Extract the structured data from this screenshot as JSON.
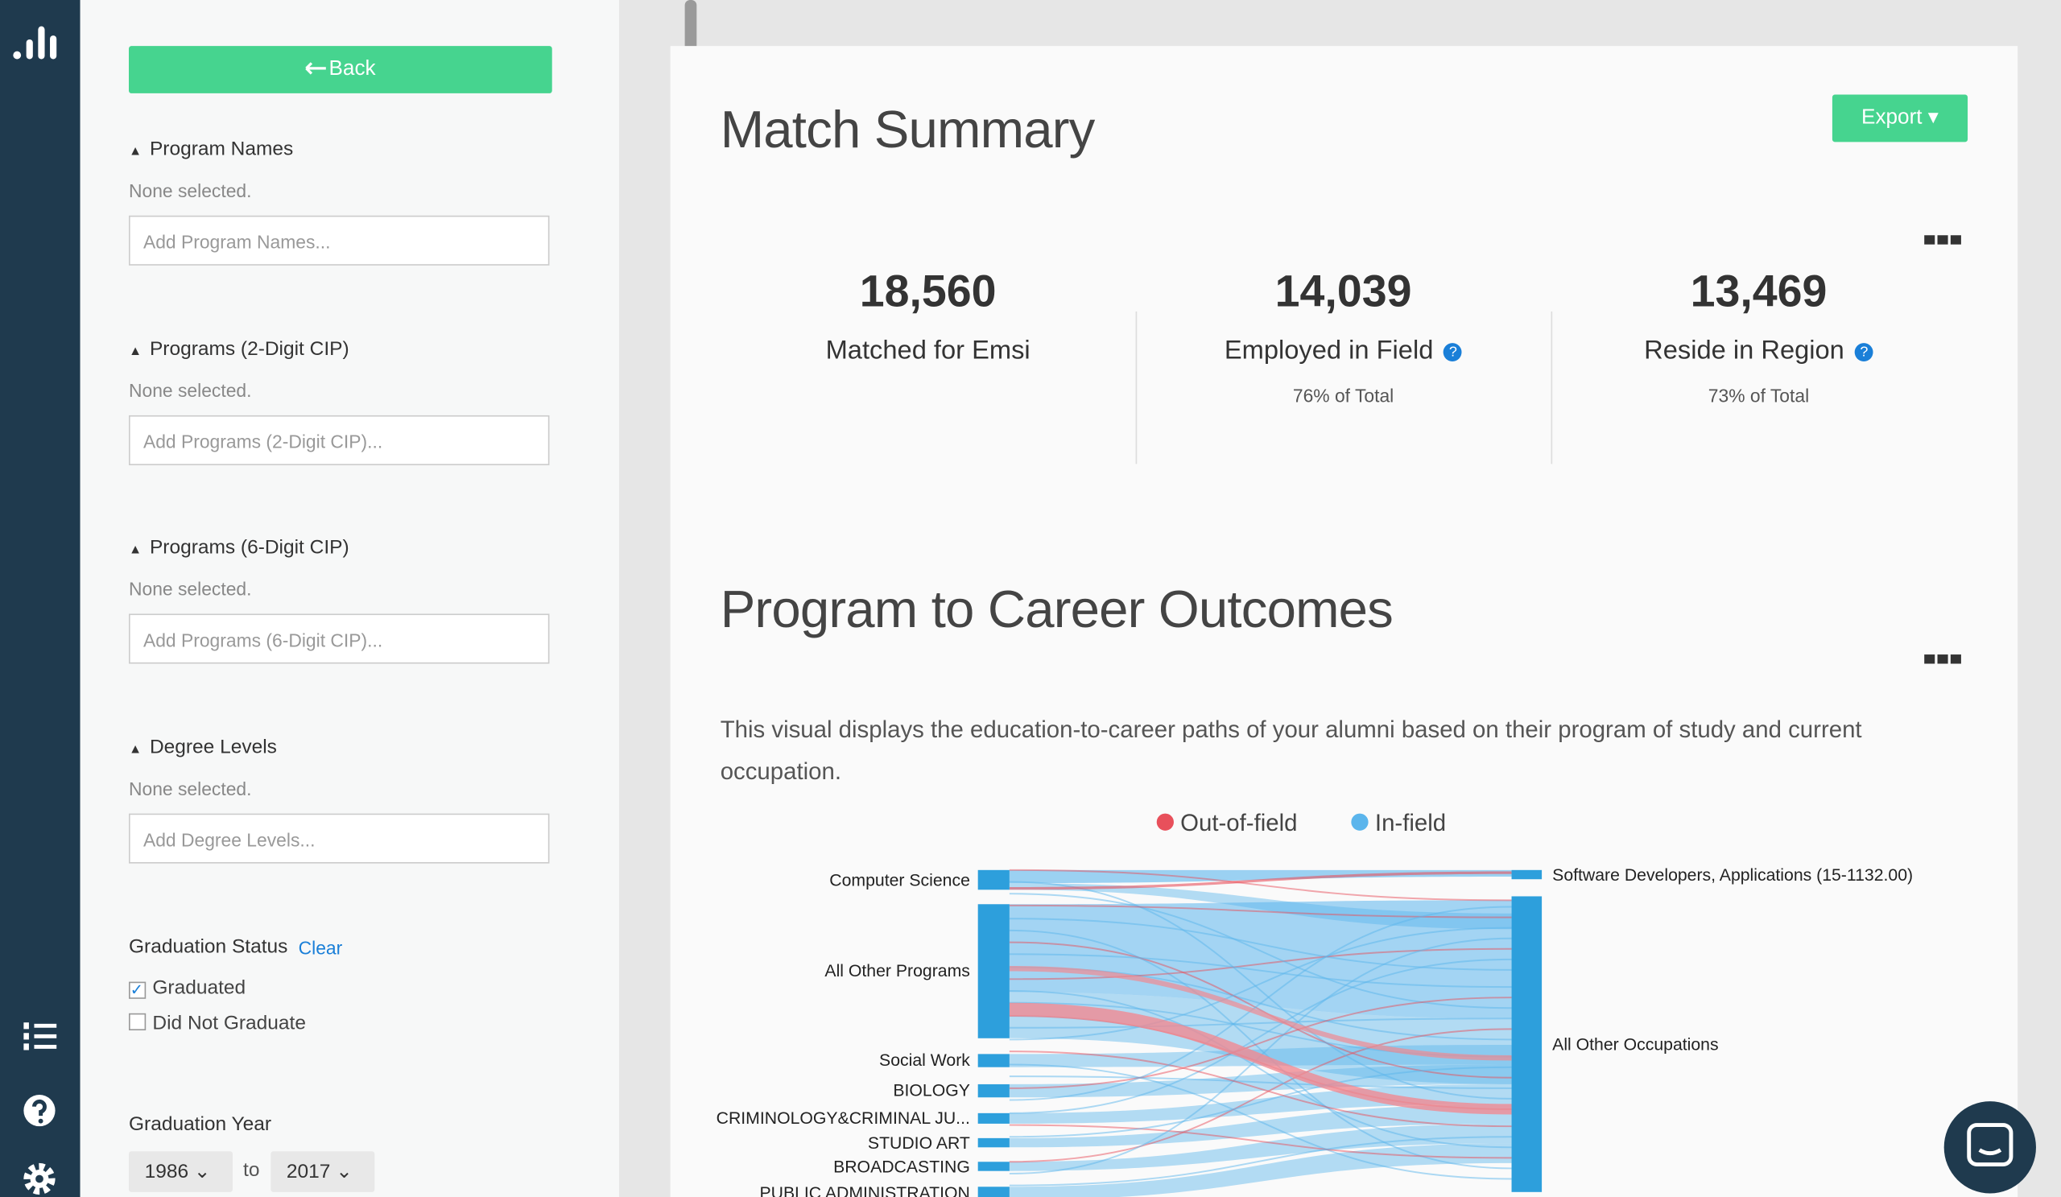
{
  "sidebar": {
    "back_button": "Back",
    "filters": [
      {
        "title": "Program Names",
        "status": "None selected.",
        "placeholder": "Add Program Names..."
      },
      {
        "title": "Programs (2-Digit CIP)",
        "status": "None selected.",
        "placeholder": "Add Programs (2-Digit CIP)..."
      },
      {
        "title": "Programs (6-Digit CIP)",
        "status": "None selected.",
        "placeholder": "Add Programs (6-Digit CIP)..."
      },
      {
        "title": "Degree Levels",
        "status": "None selected.",
        "placeholder": "Add Degree Levels..."
      }
    ],
    "graduation_status": {
      "title": "Graduation Status",
      "clear": "Clear",
      "options": [
        "Graduated",
        "Did Not Graduate"
      ]
    },
    "graduation_year": {
      "title": "Graduation Year",
      "from": "1986",
      "to_label": "to",
      "to": "2017"
    }
  },
  "main": {
    "match_summary": {
      "title": "Match Summary",
      "export": "Export",
      "stats": [
        {
          "value": "18,560",
          "label": "Matched for Emsi"
        },
        {
          "value": "14,039",
          "label": "Employed in Field",
          "note": "76% of Total"
        },
        {
          "value": "13,469",
          "label": "Reside in Region",
          "note": "73% of Total"
        }
      ]
    },
    "career_outcomes": {
      "title": "Program to Career Outcomes",
      "description": "This visual displays the education-to-career paths of your alumni based on their program of study and current occupation.",
      "legend": [
        "Out-of-field",
        "In-field"
      ],
      "programs": [
        "Computer Science",
        "All Other Programs",
        "Social Work",
        "BIOLOGY",
        "CRIMINOLOGY&CRIMINAL JU...",
        "STUDIO ART",
        "BROADCASTING",
        "PUBLIC ADMINISTRATION"
      ],
      "occupations": [
        "Software Developers, Applications (15-1132.00)",
        "All Other Occupations"
      ]
    }
  }
}
